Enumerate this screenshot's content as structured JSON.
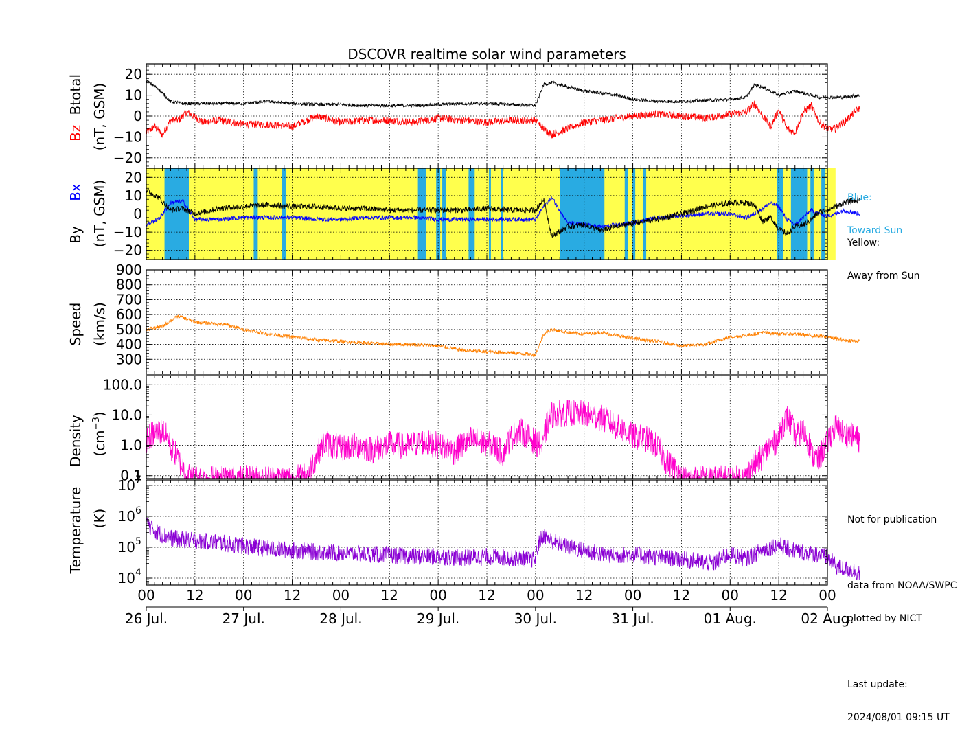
{
  "title": "DSCOVR realtime solar wind parameters",
  "colors": {
    "bz": "#ff0000",
    "btotal": "#000000",
    "bx": "#0000ff",
    "by": "#000000",
    "toward": "#29abe2",
    "away": "#ffff4d",
    "speed": "#ff8000",
    "density": "#ff00cc",
    "temperature": "#8a00d4"
  },
  "x_axis": {
    "hour_ticks": [
      "00",
      "12",
      "00",
      "12",
      "00",
      "12",
      "00",
      "12",
      "00",
      "12",
      "00",
      "12",
      "00",
      "12",
      "00"
    ],
    "day_labels": [
      "26 Jul.",
      "27 Jul.",
      "28 Jul.",
      "29 Jul.",
      "30 Jul.",
      "31 Jul.",
      "01 Aug.",
      "02 Aug."
    ]
  },
  "panels": {
    "mag": {
      "ylabel_a": "Bz",
      "ylabel_b": "Btotal",
      "ylabel_unit": "(nT, GSM)",
      "ticks": [
        "20",
        "10",
        "0",
        "−10",
        "−20"
      ]
    },
    "bxby": {
      "ylabel_a": "By",
      "ylabel_b": "Bx",
      "ylabel_unit": "(nT, GSM)",
      "ticks": [
        "20",
        "10",
        "0",
        "−10",
        "−20"
      ]
    },
    "speed": {
      "ylabel": "Speed",
      "ylabel_unit": "(km/s)",
      "ticks": [
        "900",
        "800",
        "700",
        "600",
        "500",
        "400",
        "300"
      ]
    },
    "density": {
      "ylabel": "Density",
      "ylabel_unit": "(cm",
      "ylabel_exp": "−3",
      "ylabel_close": ")",
      "ticks": [
        "100.0",
        "10.0",
        "1.0",
        "0.1"
      ]
    },
    "temperature": {
      "ylabel": "Temperature",
      "ylabel_unit": "(K)",
      "ticks": [
        {
          "base": "10",
          "exp": "7"
        },
        {
          "base": "10",
          "exp": "6"
        },
        {
          "base": "10",
          "exp": "5"
        },
        {
          "base": "10",
          "exp": "4"
        }
      ]
    }
  },
  "legend": {
    "blue_line1": "Blue:",
    "blue_line2": "Toward Sun",
    "yellow_line1": "Yellow:",
    "yellow_line2": "Away from Sun"
  },
  "notes": {
    "line1": "Not for publication",
    "line2": "data from NOAA/SWPC",
    "line3": "plotted by NICT",
    "line4": "Last update:",
    "line5": "2024/08/01 09:15 UT"
  },
  "chart_data": [
    {
      "type": "line",
      "panel": "Btotal / Bz",
      "x_unit": "hours since 26 Jul. 00 UT",
      "ylim": [
        -25,
        25
      ],
      "grid": true,
      "series": [
        {
          "name": "Btotal",
          "x": [
            0,
            3,
            6,
            9,
            12,
            18,
            24,
            30,
            36,
            42,
            48,
            54,
            60,
            66,
            72,
            78,
            84,
            90,
            96,
            98,
            100,
            104,
            108,
            112,
            116,
            120,
            126,
            132,
            138,
            144,
            148,
            150,
            152,
            154,
            156,
            158,
            160,
            162,
            164,
            166,
            168,
            170,
            172,
            176
          ],
          "values": [
            17,
            13,
            7,
            6,
            6,
            6,
            6,
            7,
            6,
            5.5,
            5.5,
            5,
            5,
            5,
            5.5,
            6,
            6,
            5.5,
            5,
            15,
            16,
            14,
            12,
            11,
            10,
            8,
            7,
            7,
            7.5,
            8,
            9,
            15,
            14,
            12,
            10,
            11,
            12,
            11,
            10,
            9,
            9,
            9,
            9,
            10
          ]
        },
        {
          "name": "Bz",
          "x": [
            0,
            2,
            4,
            6,
            8,
            10,
            14,
            18,
            24,
            30,
            36,
            42,
            48,
            54,
            60,
            66,
            72,
            78,
            84,
            90,
            96,
            98,
            100,
            104,
            108,
            112,
            116,
            120,
            126,
            132,
            138,
            144,
            148,
            150,
            152,
            154,
            156,
            158,
            160,
            162,
            164,
            166,
            168,
            170,
            172,
            176
          ],
          "values": [
            -8,
            -5,
            -9,
            -2,
            -2,
            2,
            -3,
            -2,
            -4,
            -4,
            -5,
            0,
            -3,
            -2,
            -2,
            -3,
            -1,
            -2,
            -3,
            -2,
            -2,
            -6,
            -9,
            -6,
            -3,
            -2,
            -1,
            0,
            1,
            0,
            -1,
            1,
            2,
            6,
            0,
            -5,
            3,
            -6,
            -8,
            2,
            5,
            -3,
            -6,
            -6,
            -3,
            4
          ]
        }
      ]
    },
    {
      "type": "line",
      "panel": "Bx / By with IMF sector shading",
      "x_unit": "hours since 26 Jul. 00 UT",
      "ylim": [
        -25,
        25
      ],
      "grid": true,
      "series": [
        {
          "name": "By",
          "x": [
            0,
            3,
            6,
            9,
            12,
            18,
            24,
            30,
            36,
            42,
            48,
            54,
            60,
            66,
            72,
            78,
            84,
            90,
            96,
            98,
            100,
            104,
            108,
            112,
            116,
            120,
            126,
            132,
            138,
            144,
            148,
            150,
            152,
            154,
            156,
            158,
            160,
            162,
            164,
            166,
            168,
            170,
            172,
            176
          ],
          "values": [
            13,
            9,
            2,
            3,
            0,
            3,
            4,
            5,
            4,
            4,
            3,
            3,
            2,
            2,
            2,
            2,
            3,
            2,
            2,
            8,
            -12,
            -7,
            -6,
            -9,
            -7,
            -5,
            -3,
            0,
            4,
            6,
            6,
            5,
            -4,
            -2,
            -8,
            -11,
            -7,
            -6,
            -3,
            1,
            2,
            4,
            6,
            8
          ]
        },
        {
          "name": "Bx",
          "x": [
            0,
            3,
            6,
            9,
            12,
            18,
            24,
            30,
            36,
            42,
            48,
            54,
            60,
            66,
            72,
            78,
            84,
            90,
            96,
            98,
            100,
            104,
            108,
            112,
            116,
            120,
            126,
            132,
            138,
            144,
            148,
            150,
            152,
            154,
            156,
            158,
            160,
            162,
            164,
            166,
            168,
            170,
            172,
            176
          ],
          "values": [
            -6,
            -3,
            6,
            7,
            -3,
            -3,
            -2,
            -2,
            -2,
            -3,
            -3,
            -2,
            -2,
            -2,
            -3,
            -3,
            -3,
            -3,
            -3,
            4,
            9,
            -5,
            -6,
            -7,
            -6,
            -5,
            -2,
            -1,
            0,
            0,
            -2,
            0,
            3,
            6,
            4,
            -3,
            -6,
            -2,
            2,
            0,
            -1,
            0,
            2,
            0
          ]
        }
      ],
      "toward_sun_intervals_hours": [
        [
          4.5,
          10.5
        ],
        [
          26.5,
          27.5
        ],
        [
          33.5,
          34.5
        ],
        [
          67,
          69
        ],
        [
          71.5,
          72.5
        ],
        [
          73,
          74
        ],
        [
          79.5,
          81
        ],
        [
          84.5,
          85
        ],
        [
          87.5,
          88
        ],
        [
          102,
          113
        ],
        [
          118,
          118.8
        ],
        [
          119.8,
          120.6
        ],
        [
          122.5,
          123.3
        ],
        [
          155.5,
          157
        ],
        [
          159,
          163
        ],
        [
          163.8,
          164.6
        ],
        [
          166.5,
          167.5
        ]
      ]
    },
    {
      "type": "line",
      "panel": "Speed",
      "x_unit": "hours since 26 Jul. 00 UT",
      "ylabel": "Speed",
      "ylim": [
        200,
        900
      ],
      "grid": true,
      "series": [
        {
          "name": "Speed",
          "x": [
            0,
            2,
            4,
            6,
            8,
            10,
            12,
            16,
            20,
            24,
            30,
            36,
            42,
            48,
            54,
            60,
            66,
            72,
            78,
            84,
            90,
            96,
            98,
            100,
            104,
            108,
            112,
            116,
            120,
            126,
            132,
            138,
            144,
            148,
            152,
            156,
            160,
            164,
            168,
            172,
            176
          ],
          "values": [
            500,
            510,
            520,
            560,
            590,
            570,
            550,
            540,
            530,
            500,
            470,
            450,
            430,
            420,
            410,
            400,
            400,
            390,
            360,
            350,
            345,
            330,
            470,
            500,
            480,
            470,
            480,
            460,
            440,
            420,
            390,
            400,
            450,
            460,
            480,
            470,
            470,
            460,
            450,
            430,
            420
          ]
        }
      ]
    },
    {
      "type": "line",
      "panel": "Density",
      "x_unit": "hours since 26 Jul. 00 UT",
      "log_scale": true,
      "ylim": [
        0.08,
        200
      ],
      "grid": true,
      "series": [
        {
          "name": "Density",
          "x": [
            0,
            2,
            4,
            6,
            8,
            10,
            12,
            18,
            24,
            30,
            36,
            40,
            42,
            44,
            48,
            52,
            56,
            60,
            64,
            68,
            72,
            76,
            80,
            84,
            88,
            92,
            96,
            98,
            100,
            104,
            108,
            112,
            116,
            120,
            124,
            128,
            132,
            136,
            140,
            144,
            148,
            152,
            156,
            158,
            160,
            162,
            164,
            166,
            168,
            170,
            172,
            174,
            176
          ],
          "values": [
            1.5,
            2.5,
            3,
            0.8,
            0.3,
            0.1,
            0.08,
            0.08,
            0.08,
            0.08,
            0.08,
            0.1,
            0.4,
            1.2,
            0.8,
            1.0,
            0.7,
            1.1,
            0.9,
            1.3,
            1.0,
            0.6,
            1.5,
            1.2,
            0.5,
            3,
            1.2,
            0.8,
            10,
            12,
            11,
            8,
            4,
            2,
            1.5,
            0.3,
            0.08,
            0.08,
            0.08,
            0.08,
            0.08,
            0.4,
            1.5,
            8,
            2,
            3,
            0.5,
            0.3,
            1.2,
            4,
            2.5,
            2,
            1.5
          ]
        }
      ]
    },
    {
      "type": "line",
      "panel": "Temperature",
      "x_unit": "hours since 26 Jul. 00 UT",
      "log_scale": true,
      "ylim": [
        6000,
        15000000
      ],
      "grid": true,
      "series": [
        {
          "name": "Temperature",
          "x": [
            0,
            2,
            4,
            6,
            8,
            12,
            16,
            20,
            24,
            30,
            36,
            42,
            48,
            54,
            60,
            66,
            72,
            78,
            84,
            90,
            96,
            98,
            100,
            104,
            108,
            112,
            116,
            120,
            124,
            128,
            132,
            136,
            140,
            144,
            148,
            152,
            156,
            158,
            160,
            162,
            164,
            166,
            168,
            170,
            172,
            174,
            176
          ],
          "values": [
            600000,
            350000,
            250000,
            200000,
            180000,
            160000,
            150000,
            130000,
            110000,
            90000,
            80000,
            70000,
            65000,
            60000,
            55000,
            50000,
            50000,
            45000,
            50000,
            45000,
            40000,
            250000,
            160000,
            100000,
            80000,
            60000,
            55000,
            60000,
            50000,
            45000,
            40000,
            35000,
            30000,
            60000,
            40000,
            80000,
            120000,
            90000,
            80000,
            70000,
            60000,
            60000,
            45000,
            25000,
            20000,
            18000,
            15000
          ]
        }
      ]
    }
  ]
}
